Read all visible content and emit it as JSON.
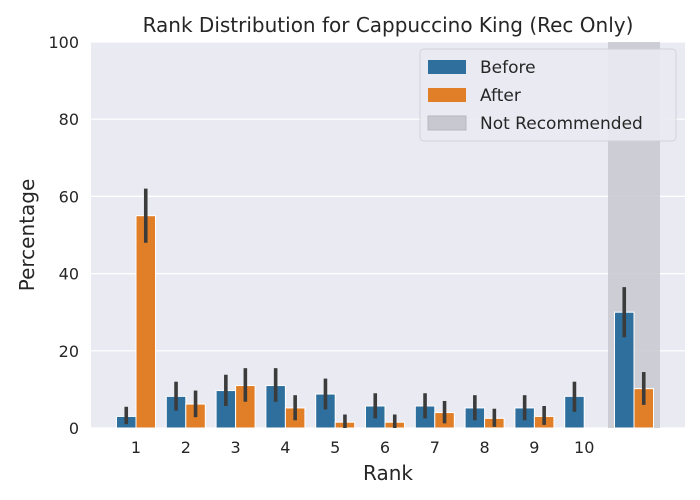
{
  "chart_data": {
    "type": "bar",
    "title": "Rank Distribution for Cappuccino King (Rec Only)",
    "xlabel": "Rank",
    "ylabel": "Percentage",
    "ylim": [
      0,
      100
    ],
    "yticks": [
      0,
      20,
      40,
      60,
      80,
      100
    ],
    "categories": [
      "1",
      "2",
      "3",
      "4",
      "5",
      "6",
      "7",
      "8",
      "9",
      "10",
      ""
    ],
    "series": [
      {
        "name": "Before",
        "color": "#2e6f9e",
        "values": [
          3,
          8.2,
          9.7,
          11,
          8.8,
          5.7,
          5.7,
          5.2,
          5.2,
          8.2,
          30
        ],
        "ci_low": [
          1,
          4.5,
          5.7,
          6.8,
          4.8,
          2.5,
          2.5,
          2,
          2,
          4.2,
          23.5
        ],
        "ci_high": [
          5.5,
          12,
          13.8,
          15.5,
          12.8,
          9,
          9,
          8.5,
          8.5,
          12,
          36.5
        ]
      },
      {
        "name": "After",
        "color": "#e07f27",
        "values": [
          55,
          6.2,
          11,
          5.2,
          1.5,
          1.5,
          4,
          2.5,
          3,
          0,
          10.2
        ],
        "ci_low": [
          48,
          2.8,
          6.8,
          2,
          0,
          0,
          1.2,
          0.3,
          0.8,
          0,
          6
        ],
        "ci_high": [
          62,
          9.7,
          15.5,
          8.5,
          3.5,
          3.5,
          7,
          5,
          5.7,
          0,
          14.5
        ]
      }
    ],
    "legend": {
      "position": "top-right",
      "entries": [
        "Before",
        "After",
        "Not Recommended"
      ]
    },
    "shaded_region": {
      "label": "Not Recommended",
      "category_index": 10,
      "color": "#c8c8d0"
    },
    "grid": true,
    "background": "#eaeaf2"
  }
}
